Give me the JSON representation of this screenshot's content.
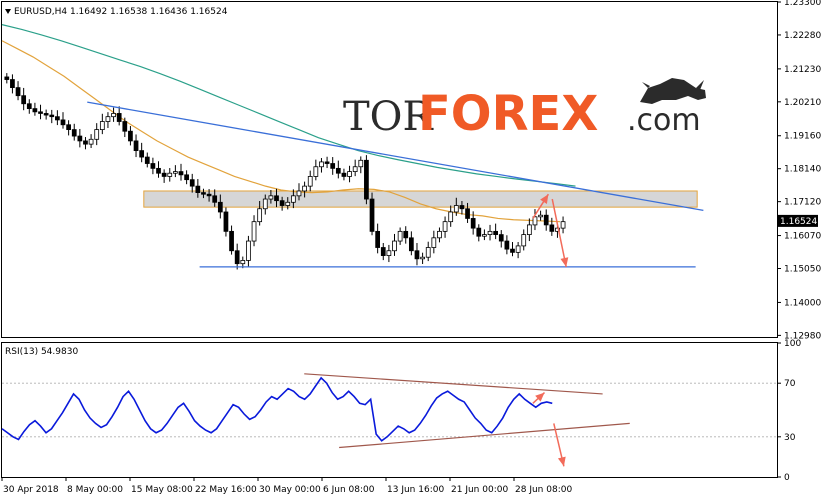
{
  "chart_data": [
    {
      "type": "candlestick",
      "header": "EURUSD,H4  1.16492 1.16538 1.16436 1.16524",
      "symbol": "EURUSD",
      "timeframe": "H4",
      "ohlc_header": [
        1.16492,
        1.16538,
        1.16436,
        1.16524
      ],
      "current_price_label": "1.16524",
      "current_price": 1.16524,
      "ylim": [
        1.1293,
        1.233
      ],
      "y_ticks": [
        "1.23300",
        "1.22280",
        "1.21230",
        "1.20210",
        "1.19160",
        "1.18140",
        "1.17120",
        "1.16070",
        "1.15050",
        "1.14000",
        "1.12980"
      ],
      "y_tick_values": [
        1.233,
        1.2228,
        1.2123,
        1.2021,
        1.1916,
        1.1814,
        1.1712,
        1.1607,
        1.1505,
        1.14,
        1.1298
      ],
      "x_ticks": [
        "30 Apr 2018",
        "8 May 00:00",
        "15 May 08:00",
        "22 May 16:00",
        "30 May 00:00",
        "6 Jun 08:00",
        "13 Jun 16:00",
        "21 Jun 00:00",
        "28 Jun 08:00"
      ],
      "price_series": [
        1.209,
        1.2065,
        1.204,
        1.2015,
        1.2,
        1.199,
        1.1985,
        1.198,
        1.1975,
        1.1965,
        1.195,
        1.1935,
        1.1915,
        1.19,
        1.189,
        1.1905,
        1.1935,
        1.196,
        1.1975,
        1.1985,
        1.196,
        1.193,
        1.19,
        1.187,
        1.185,
        1.183,
        1.1815,
        1.18,
        1.179,
        1.18,
        1.1805,
        1.1795,
        1.178,
        1.176,
        1.174,
        1.1735,
        1.173,
        1.171,
        1.168,
        1.162,
        1.156,
        1.152,
        1.153,
        1.159,
        1.165,
        1.169,
        1.172,
        1.173,
        1.1715,
        1.17,
        1.171,
        1.173,
        1.1745,
        1.176,
        1.179,
        1.182,
        1.1835,
        1.183,
        1.1815,
        1.18,
        1.179,
        1.1805,
        1.182,
        1.184,
        1.172,
        1.162,
        1.157,
        1.1545,
        1.156,
        1.159,
        1.162,
        1.16,
        1.156,
        1.1535,
        1.154,
        1.157,
        1.16,
        1.162,
        1.165,
        1.168,
        1.17,
        1.169,
        1.166,
        1.163,
        1.1605,
        1.161,
        1.162,
        1.161,
        1.159,
        1.1565,
        1.1555,
        1.1575,
        1.161,
        1.164,
        1.1665,
        1.167,
        1.164,
        1.162,
        1.163,
        1.165
      ],
      "moving_averages": [
        {
          "color": "#e2a33c",
          "values": [
            1.221,
            1.2185,
            1.216,
            1.213,
            1.21,
            1.2065,
            1.203,
            1.1995,
            1.196,
            1.193,
            1.19,
            1.1875,
            1.185,
            1.183,
            1.181,
            1.179,
            1.1775,
            1.176,
            1.1748,
            1.1742,
            1.174,
            1.1742,
            1.1748,
            1.1752,
            1.175,
            1.1742,
            1.1725,
            1.1705,
            1.169,
            1.168,
            1.1672,
            1.1668,
            1.166,
            1.1656,
            1.1654,
            1.1652,
            1.165
          ]
        },
        {
          "color": "#2ba08a",
          "values": [
            1.226,
            1.2245,
            1.2228,
            1.221,
            1.219,
            1.217,
            1.215,
            1.213,
            1.2108,
            1.2085,
            1.206,
            1.2035,
            1.201,
            1.1985,
            1.196,
            1.1935,
            1.191,
            1.189,
            1.187,
            1.1855,
            1.1842,
            1.183,
            1.1818,
            1.1808,
            1.1798,
            1.179,
            1.1782,
            1.1775,
            1.1768,
            1.176
          ]
        }
      ],
      "trend_lines": [
        {
          "color": "#3a6fd8",
          "from": [
            0.11,
            1.202
          ],
          "to": [
            0.905,
            1.1685
          ]
        },
        {
          "color": "#3a6fd8",
          "from": [
            0.255,
            1.151
          ],
          "to": [
            0.895,
            1.151
          ]
        }
      ],
      "zone": {
        "y_range": [
          1.1695,
          1.1745
        ],
        "color": "#c8c8c8",
        "border": "#e2a33c"
      },
      "arrows": [
        {
          "color": "#f26b5a",
          "from": [
            0.685,
            1.166
          ],
          "to": [
            0.705,
            1.1735
          ]
        },
        {
          "color": "#f26b5a",
          "from": [
            0.71,
            1.172
          ],
          "to": [
            0.728,
            1.151
          ]
        }
      ],
      "watermark": {
        "prefix": "TOR",
        "brand": "FOREX",
        "suffix": ".com"
      }
    },
    {
      "type": "line",
      "header": "RSI(13) 54.9830",
      "indicator": "RSI(13)",
      "value": 54.983,
      "ylim": [
        0,
        100
      ],
      "y_ticks": [
        "100",
        "70",
        "30",
        "0"
      ],
      "y_tick_values": [
        100,
        70,
        30,
        0
      ],
      "series_color": "#0a1adb",
      "values": [
        36,
        33,
        30,
        28,
        34,
        39,
        42,
        38,
        33,
        36,
        42,
        48,
        55,
        62,
        58,
        50,
        44,
        40,
        37,
        39,
        45,
        52,
        60,
        64,
        58,
        50,
        42,
        36,
        33,
        35,
        40,
        46,
        52,
        55,
        49,
        42,
        38,
        35,
        33,
        36,
        42,
        48,
        54,
        52,
        47,
        43,
        45,
        50,
        56,
        60,
        58,
        62,
        66,
        64,
        60,
        58,
        62,
        68,
        74,
        70,
        63,
        58,
        60,
        64,
        60,
        55,
        54,
        58,
        32,
        27,
        30,
        34,
        38,
        36,
        33,
        35,
        40,
        46,
        53,
        59,
        62,
        64,
        61,
        58,
        56,
        50,
        44,
        40,
        35,
        33,
        38,
        44,
        52,
        58,
        62,
        58,
        55,
        52,
        55,
        56,
        55
      ],
      "trend_lines": [
        {
          "color": "#a0584c",
          "from": [
            0.39,
            77
          ],
          "to": [
            0.775,
            62
          ]
        },
        {
          "color": "#a0584c",
          "from": [
            0.435,
            22
          ],
          "to": [
            0.81,
            40
          ]
        }
      ],
      "arrows": [
        {
          "color": "#f26b5a",
          "from": [
            0.685,
            55
          ],
          "to": [
            0.7,
            63
          ]
        },
        {
          "color": "#f26b5a",
          "from": [
            0.712,
            40
          ],
          "to": [
            0.725,
            8
          ]
        }
      ]
    }
  ]
}
